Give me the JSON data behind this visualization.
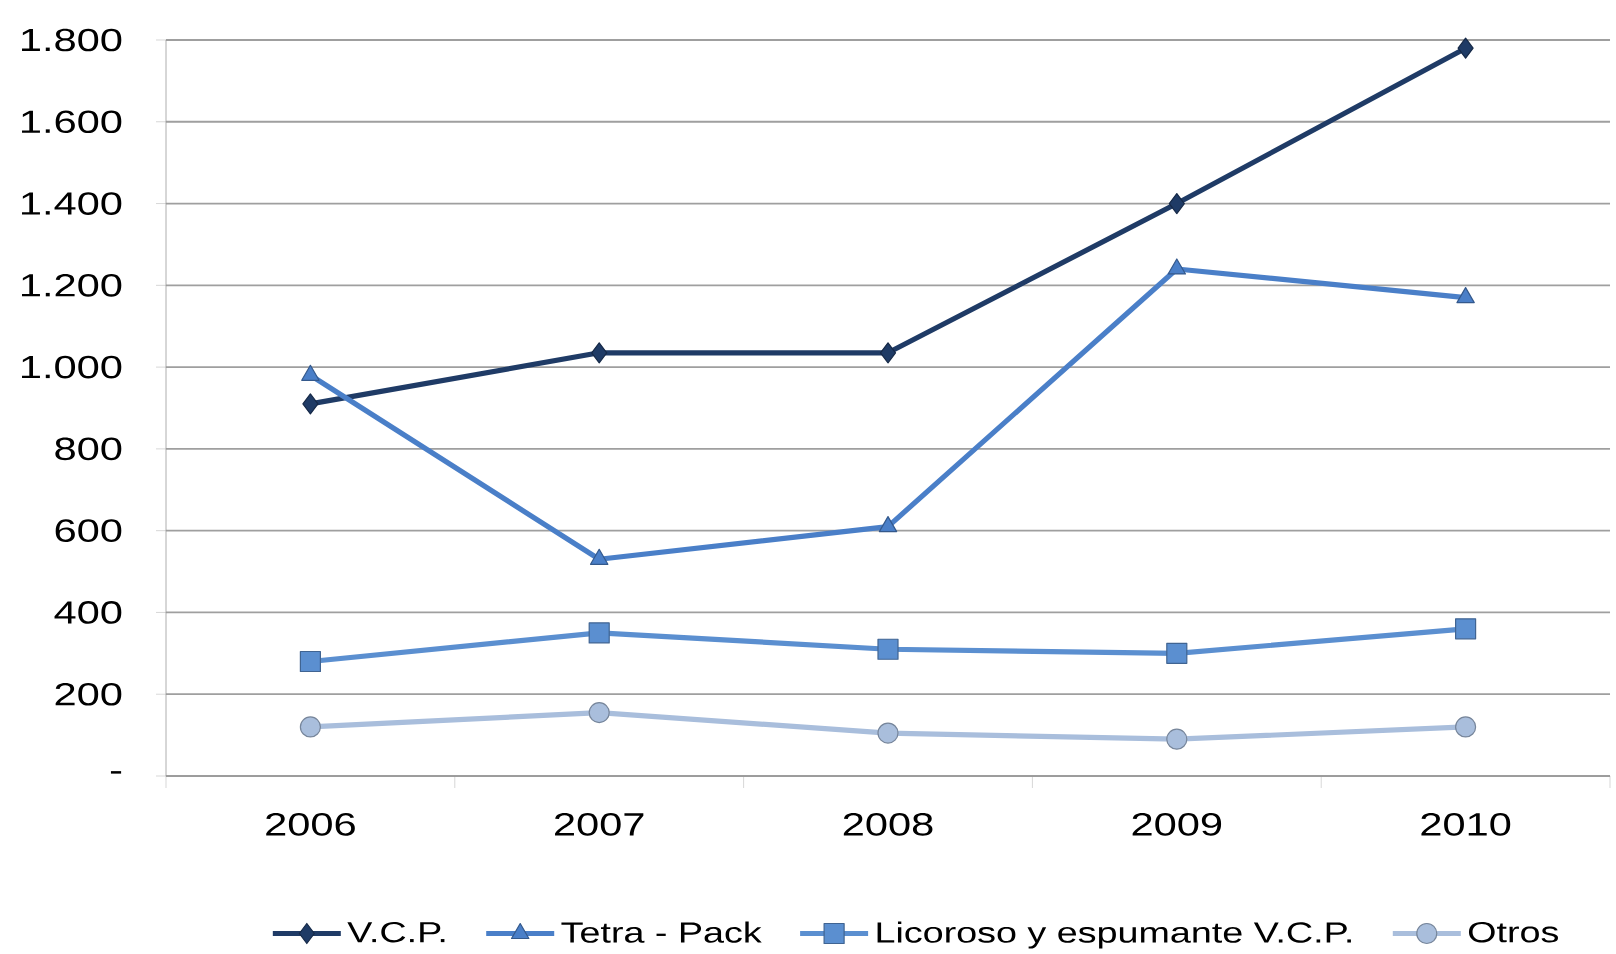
{
  "chart_data": {
    "type": "line",
    "categories": [
      "2006",
      "2007",
      "2008",
      "2009",
      "2010"
    ],
    "series": [
      {
        "name": "V.C.P.",
        "color": "#1f3b66",
        "values": [
          910,
          1035,
          1035,
          1400,
          1780
        ],
        "marker": "diamond"
      },
      {
        "name": "Tetra - Pack",
        "color": "#4a7fc8",
        "values": [
          980,
          530,
          610,
          1240,
          1170
        ],
        "marker": "triangle"
      },
      {
        "name": "Licoroso y espumante V.C.P.",
        "color": "#5b8fd0",
        "values": [
          280,
          350,
          310,
          300,
          360
        ],
        "marker": "square"
      },
      {
        "name": "Otros",
        "color": "#a9bedc",
        "values": [
          120,
          155,
          105,
          90,
          120
        ],
        "marker": "circle"
      }
    ],
    "ylim": [
      0,
      1800
    ],
    "yticks": [
      {
        "value": 0,
        "label": "-"
      },
      200,
      400,
      600,
      800,
      {
        "value": 1000,
        "label": "1.000"
      },
      {
        "value": 1200,
        "label": "1.200"
      },
      {
        "value": 1400,
        "label": "1.400"
      },
      {
        "value": 1600,
        "label": "1.600"
      },
      {
        "value": 1800,
        "label": "1.800"
      }
    ],
    "grid": "y",
    "legend": "bottom"
  }
}
